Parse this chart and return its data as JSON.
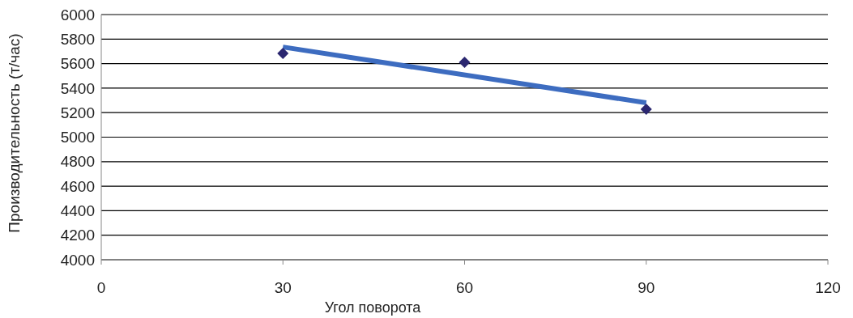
{
  "chart_data": {
    "type": "scatter",
    "xlabel": "Угол поворота",
    "ylabel": "Производительность (т/час)",
    "xlim": [
      0,
      120
    ],
    "xticks": [
      0,
      30,
      60,
      90,
      120
    ],
    "ylim": [
      4000,
      6000
    ],
    "yticks": [
      4000,
      4200,
      4400,
      4600,
      4800,
      5000,
      5200,
      5400,
      5600,
      5800,
      6000
    ],
    "grid": "y",
    "series": [
      {
        "type": "line",
        "color": "#3d6cc0",
        "x": [
          30,
          90
        ],
        "values": [
          5735,
          5280
        ],
        "marker": "none"
      },
      {
        "color": "#2b2770",
        "x": [
          30,
          60,
          90
        ],
        "values": [
          5683,
          5610,
          5228
        ],
        "marker": "diamond"
      }
    ]
  }
}
